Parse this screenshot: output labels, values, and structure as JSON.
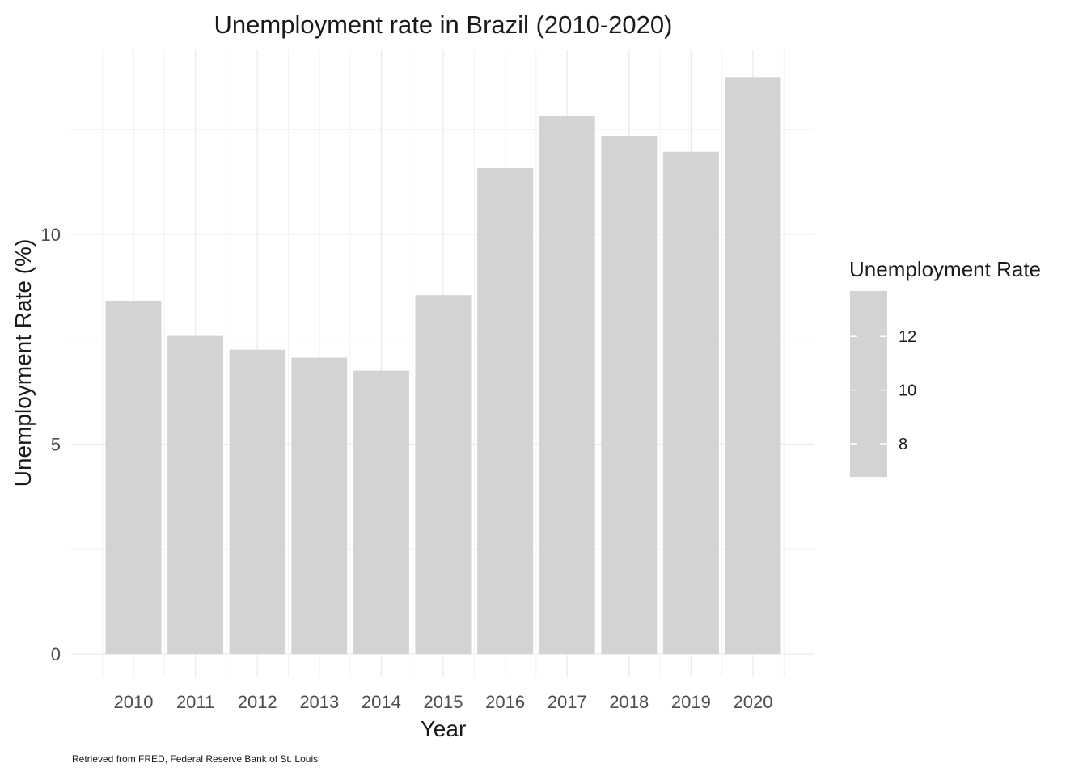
{
  "chart_data": {
    "type": "bar",
    "title": "Unemployment rate in Brazil (2010-2020)",
    "xlabel": "Year",
    "ylabel": "Unemployment Rate (%)",
    "categories": [
      "2010",
      "2011",
      "2012",
      "2013",
      "2014",
      "2015",
      "2016",
      "2017",
      "2018",
      "2019",
      "2020"
    ],
    "values": [
      8.42,
      7.58,
      7.25,
      7.06,
      6.75,
      8.55,
      11.58,
      12.82,
      12.35,
      11.97,
      13.75
    ],
    "ylim": [
      -0.6,
      14.4
    ],
    "yticks": [
      0,
      5,
      10
    ],
    "ytick_labels": [
      "0",
      "5",
      "10"
    ],
    "grid": true,
    "bar_color": "#d3d3d3",
    "legend": {
      "title": "Unemployment Rate",
      "placement": "right",
      "ticks": [
        8,
        10,
        12
      ],
      "tick_labels": [
        "8",
        "10",
        "12"
      ]
    },
    "caption": "Retrieved from FRED, Federal Reserve Bank of St. Louis"
  }
}
